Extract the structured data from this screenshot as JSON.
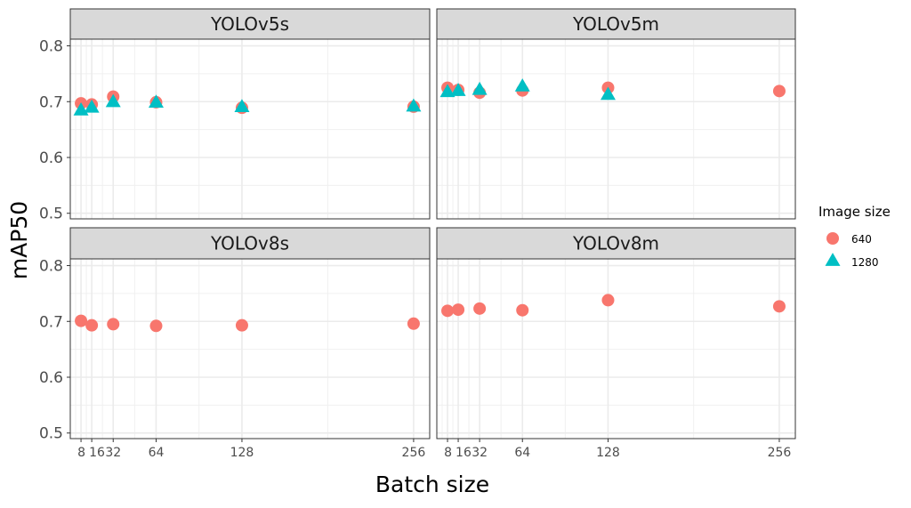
{
  "chart_data": {
    "type": "scatter",
    "xlabel": "Batch size",
    "ylabel": "mAP50",
    "x_ticks": [
      8,
      16,
      32,
      64,
      128,
      256
    ],
    "x_tick_labels": [
      "8",
      "16",
      "32",
      "64",
      "128",
      "256"
    ],
    "xlim": [
      0,
      268
    ],
    "y_ticks": [
      0.5,
      0.6,
      0.7,
      0.8
    ],
    "y_tick_labels": [
      "0.5",
      "0.6",
      "0.7",
      "0.8"
    ],
    "ylim": [
      0.49,
      0.812
    ],
    "grid": true,
    "legend": {
      "title": "Image size",
      "position": "right",
      "entries": [
        {
          "label": "640",
          "color": "#F8766D",
          "shape": "circle"
        },
        {
          "label": "1280",
          "color": "#00BFC4",
          "shape": "triangle"
        }
      ]
    },
    "panels": [
      {
        "title": "YOLOv5s",
        "series": [
          {
            "name": "640",
            "x": [
              8,
              16,
              32,
              64,
              128,
              256
            ],
            "y": [
              0.697,
              0.695,
              0.709,
              0.699,
              0.689,
              0.691
            ]
          },
          {
            "name": "1280",
            "x": [
              8,
              16,
              32,
              64,
              128,
              256
            ],
            "y": [
              0.683,
              0.688,
              0.698,
              0.697,
              0.689,
              0.69
            ]
          }
        ]
      },
      {
        "title": "YOLOv5m",
        "series": [
          {
            "name": "640",
            "x": [
              8,
              16,
              32,
              64,
              128,
              256
            ],
            "y": [
              0.725,
              0.721,
              0.716,
              0.72,
              0.725,
              0.719
            ]
          },
          {
            "name": "1280",
            "x": [
              8,
              16,
              32,
              64,
              128
            ],
            "y": [
              0.716,
              0.718,
              0.72,
              0.726,
              0.711
            ]
          }
        ]
      },
      {
        "title": "YOLOv8s",
        "series": [
          {
            "name": "640",
            "x": [
              8,
              16,
              32,
              64,
              128,
              256
            ],
            "y": [
              0.701,
              0.693,
              0.695,
              0.692,
              0.693,
              0.696
            ]
          }
        ]
      },
      {
        "title": "YOLOv8m",
        "series": [
          {
            "name": "640",
            "x": [
              8,
              16,
              32,
              64,
              128,
              256
            ],
            "y": [
              0.719,
              0.721,
              0.723,
              0.72,
              0.738,
              0.727
            ]
          }
        ]
      }
    ]
  }
}
